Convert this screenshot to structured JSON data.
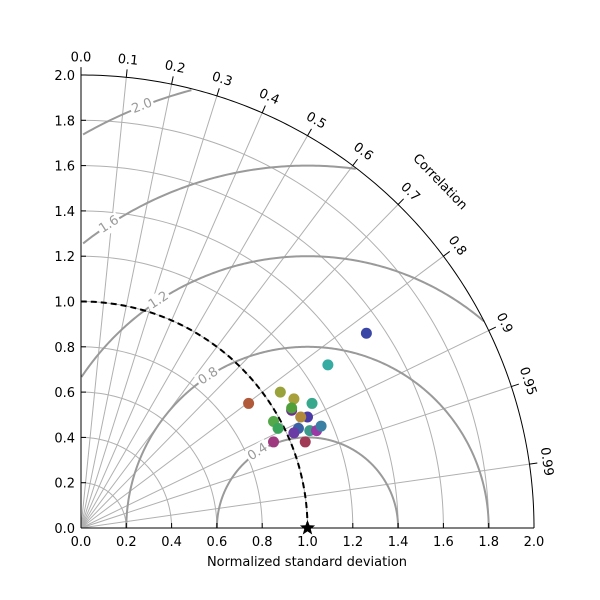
{
  "chart_data": {
    "type": "scatter",
    "subtype": "taylor-diagram",
    "xlabel": "Normalized standard deviation",
    "ylabel": "",
    "corr_title": "Correlation",
    "std_range": [
      0,
      2
    ],
    "std_ticks": [
      "0.0",
      "0.2",
      "0.4",
      "0.6",
      "0.8",
      "1.0",
      "1.2",
      "1.4",
      "1.6",
      "1.8",
      "2.0"
    ],
    "corr_ticks": [
      "0.0",
      "0.1",
      "0.2",
      "0.3",
      "0.4",
      "0.5",
      "0.6",
      "0.7",
      "0.8",
      "0.9",
      "0.95",
      "0.99"
    ],
    "corr_tick_values": [
      0.0,
      0.1,
      0.2,
      0.3,
      0.4,
      0.5,
      0.6,
      0.7,
      0.8,
      0.9,
      0.95,
      0.99
    ],
    "std_grid": [
      0.2,
      0.4,
      0.6,
      0.8,
      1.0,
      1.2,
      1.4,
      1.6,
      1.8
    ],
    "rms_contours": [
      {
        "value": 0.4,
        "label": "0.4"
      },
      {
        "value": 0.8,
        "label": "0.8"
      },
      {
        "value": 1.2,
        "label": "1.2"
      },
      {
        "value": 1.6,
        "label": "1.6"
      },
      {
        "value": 2.0,
        "label": "2.0"
      }
    ],
    "reference": {
      "std": 1.0,
      "marker": "star"
    },
    "points": [
      {
        "x": 1.26,
        "y": 0.86,
        "color": "#3a46a5"
      },
      {
        "x": 1.09,
        "y": 0.72,
        "color": "#35aba2"
      },
      {
        "x": 0.74,
        "y": 0.55,
        "color": "#b05a3a"
      },
      {
        "x": 0.88,
        "y": 0.6,
        "color": "#9aa23a"
      },
      {
        "x": 0.94,
        "y": 0.57,
        "color": "#a8a03a"
      },
      {
        "x": 1.02,
        "y": 0.55,
        "color": "#38a88c"
      },
      {
        "x": 0.93,
        "y": 0.52,
        "color": "#6c2f8f"
      },
      {
        "x": 0.93,
        "y": 0.53,
        "color": "#4fa03a"
      },
      {
        "x": 1.0,
        "y": 0.49,
        "color": "#4a3aa5"
      },
      {
        "x": 0.97,
        "y": 0.49,
        "color": "#b08a3a"
      },
      {
        "x": 0.85,
        "y": 0.47,
        "color": "#55a84a"
      },
      {
        "x": 0.87,
        "y": 0.44,
        "color": "#3aa55a"
      },
      {
        "x": 0.96,
        "y": 0.44,
        "color": "#3a60a5"
      },
      {
        "x": 1.01,
        "y": 0.43,
        "color": "#3a9a8a"
      },
      {
        "x": 1.04,
        "y": 0.43,
        "color": "#9a3aa5"
      },
      {
        "x": 1.06,
        "y": 0.45,
        "color": "#3a80a5"
      },
      {
        "x": 0.94,
        "y": 0.42,
        "color": "#6a3aa5"
      },
      {
        "x": 0.85,
        "y": 0.38,
        "color": "#a03a80"
      },
      {
        "x": 0.99,
        "y": 0.38,
        "color": "#a03a55"
      }
    ]
  }
}
